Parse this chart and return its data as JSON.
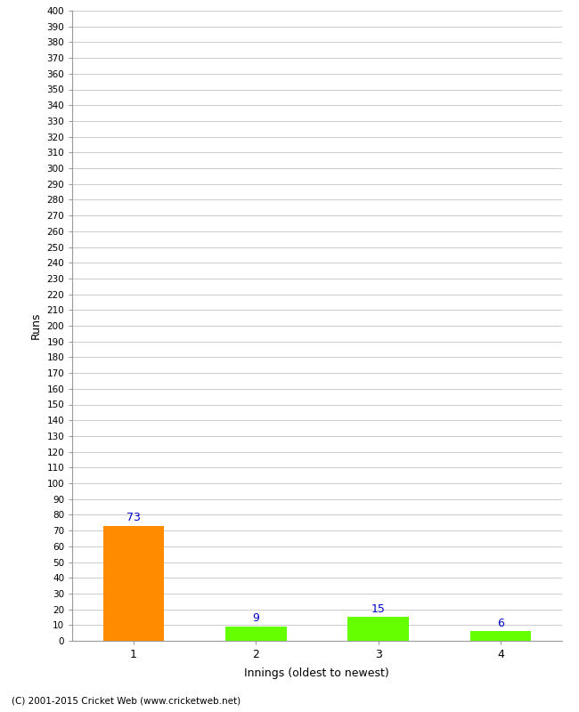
{
  "categories": [
    1,
    2,
    3,
    4
  ],
  "values": [
    73,
    9,
    15,
    6
  ],
  "bar_colors": [
    "#ff8c00",
    "#66ff00",
    "#66ff00",
    "#66ff00"
  ],
  "ylabel": "Runs",
  "xlabel": "Innings (oldest to newest)",
  "ylim": [
    0,
    400
  ],
  "background_color": "#ffffff",
  "grid_color": "#cccccc",
  "value_label_color": "#0000cc",
  "copyright": "(C) 2001-2015 Cricket Web (www.cricketweb.net)",
  "bar_width": 0.5,
  "tick_fontsize": 7.5,
  "label_fontsize": 9
}
